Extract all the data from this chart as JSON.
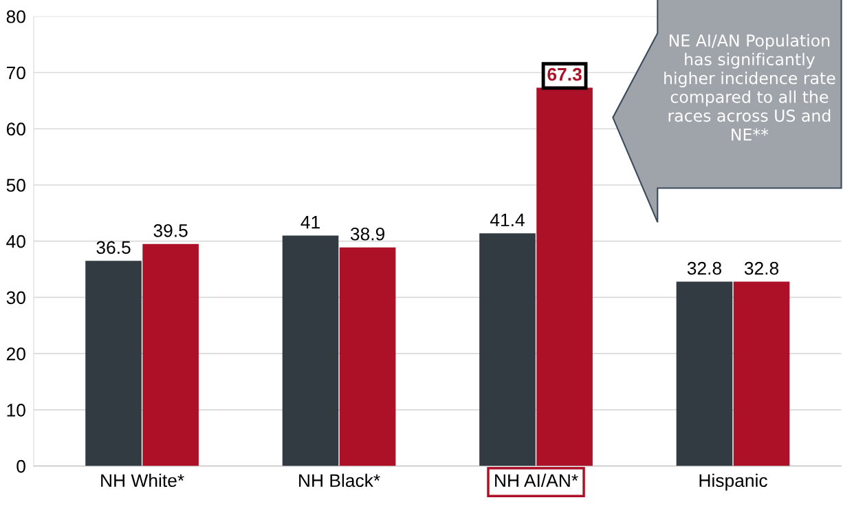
{
  "chart_data": {
    "type": "bar",
    "categories": [
      "NH White*",
      "NH Black*",
      "NH AI/AN*",
      "Hispanic"
    ],
    "series": [
      {
        "color": "#323b42",
        "values": [
          36.5,
          41,
          41.4,
          32.8
        ]
      },
      {
        "color": "#ad1128",
        "values": [
          39.5,
          38.9,
          67.3,
          32.8
        ]
      }
    ],
    "ylim": [
      0,
      80
    ],
    "yticks": [
      0,
      10,
      20,
      30,
      40,
      50,
      60,
      70,
      80
    ],
    "grid": "y",
    "data_labels": true,
    "annotations": [
      "NE AI/AN Population has significantly higher incidence rate compared to all the races across US and NE**"
    ]
  }
}
